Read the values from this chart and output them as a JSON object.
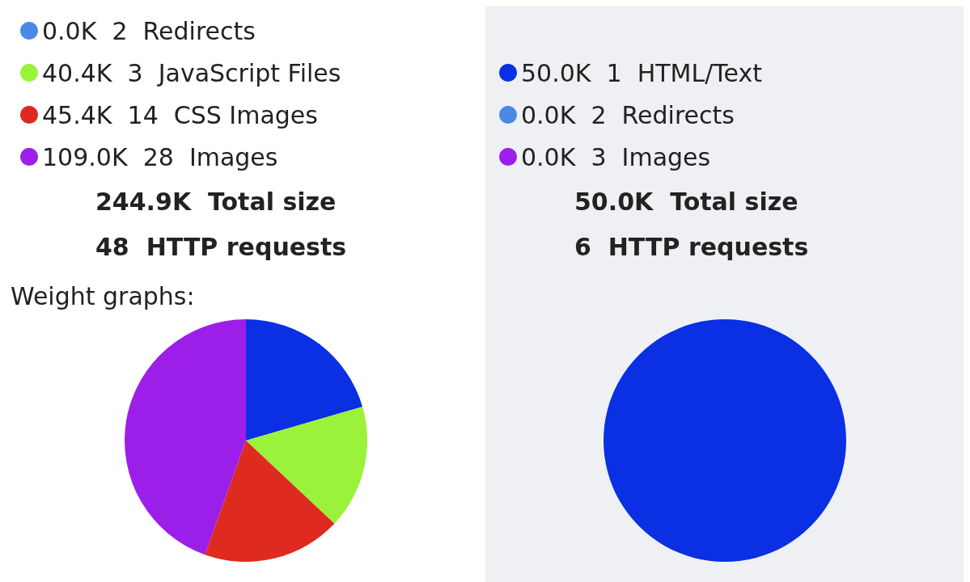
{
  "chart_data": [
    {
      "type": "pie",
      "title": "Weight graphs:",
      "legend": "top",
      "categories": [
        null,
        "0.0K  2  Redirects",
        "40.4K  3  JavaScript Files",
        "45.4K  14  CSS Images",
        "109.0K  28  Images"
      ],
      "values": [
        20.5,
        0.0,
        16.5,
        18.5,
        44.5
      ],
      "colors": [
        "#0b2fe3",
        "#4a8ae6",
        "#9af23a",
        "#df2a1f",
        "#9b1fe8"
      ],
      "annotations": [
        "244.9K  Total size",
        "48  HTTP requests"
      ]
    },
    {
      "type": "pie",
      "legend": "top",
      "categories": [
        "50.0K  1  HTML/Text",
        "0.0K  2  Redirects",
        "0.0K  3  Images"
      ],
      "values": [
        100,
        0,
        0
      ],
      "colors": [
        "#0b2fe3",
        "#4a8ae6",
        "#9b1fe8"
      ],
      "annotations": [
        "50.0K  Total size",
        "6  HTTP requests"
      ]
    }
  ]
}
